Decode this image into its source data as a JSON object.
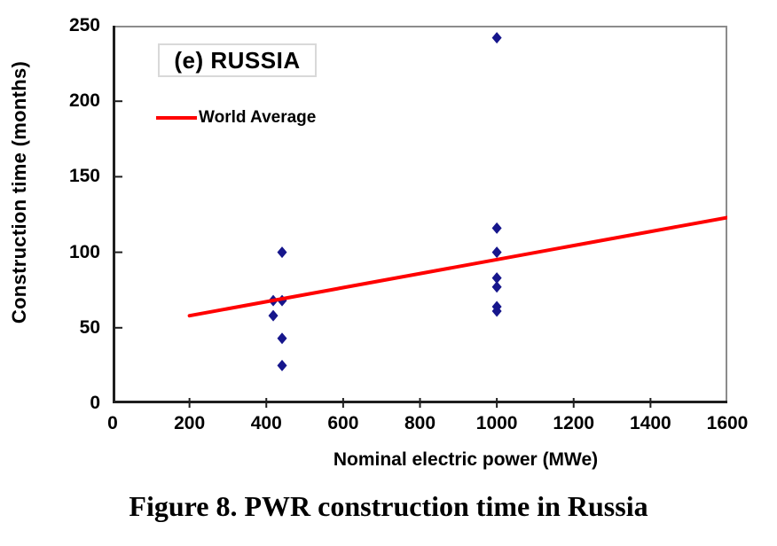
{
  "figure": {
    "caption": "Figure 8. PWR construction time in Russia"
  },
  "colors": {
    "marker_navy": "#16168c",
    "world_average_red": "#ff0000",
    "axis_black": "#1f1f1f",
    "frame_gray": "#8c8c8c",
    "title_box_border": "#d9d9d9",
    "text": "#000000",
    "background": "#ffffff"
  },
  "chart_data": {
    "type": "scatter",
    "title": "(e) RUSSIA",
    "xlabel": "Nominal electric power (MWe)",
    "ylabel": "Construction time (months)",
    "xlim": [
      0,
      1600
    ],
    "ylim": [
      0,
      250
    ],
    "xticks": [
      0,
      200,
      400,
      600,
      800,
      1000,
      1200,
      1400,
      1600
    ],
    "yticks": [
      0,
      50,
      100,
      150,
      200,
      250
    ],
    "grid": false,
    "legend_position": "top-left-inside",
    "legend": [
      {
        "label": "World Average",
        "color": "#ff0000",
        "symbol": "line"
      }
    ],
    "series": [
      {
        "name": "PWR construction time (Russia)",
        "type": "scatter",
        "marker": "diamond",
        "color": "#16168c",
        "points": [
          [
            441,
            100
          ],
          [
            418,
            68
          ],
          [
            441,
            68
          ],
          [
            418,
            58
          ],
          [
            441,
            43
          ],
          [
            441,
            25
          ],
          [
            1000,
            242
          ],
          [
            1000,
            116
          ],
          [
            1000,
            100
          ],
          [
            1000,
            83
          ],
          [
            1000,
            77
          ],
          [
            1000,
            64
          ],
          [
            1000,
            61
          ]
        ]
      },
      {
        "name": "World Average",
        "type": "line",
        "color": "#ff0000",
        "points": [
          [
            200,
            58
          ],
          [
            1600,
            123
          ]
        ]
      }
    ]
  }
}
